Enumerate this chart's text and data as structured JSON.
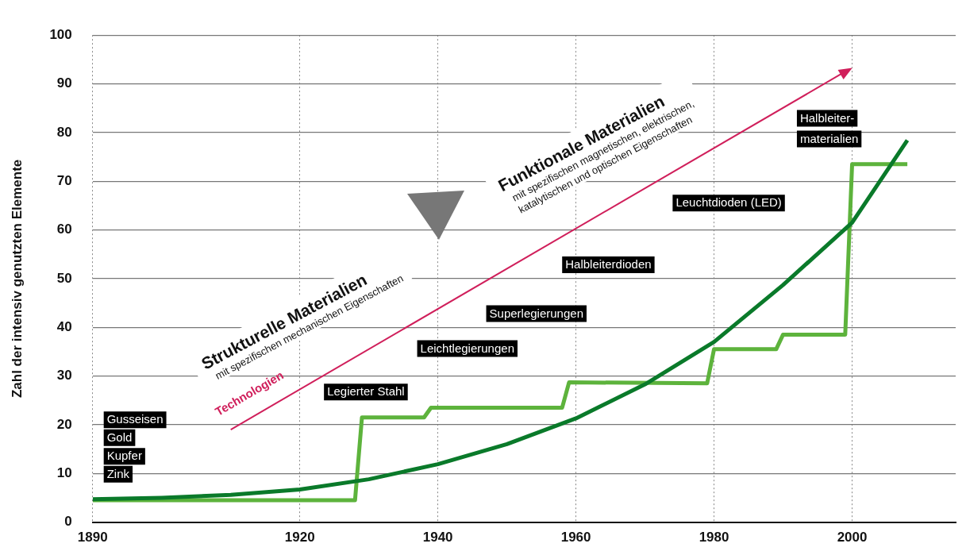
{
  "chart_data": {
    "type": "line",
    "ylabel": "Zahl der intensiv genutzten Elemente",
    "xlim": [
      1890,
      2015
    ],
    "xticks": [
      1890,
      1920,
      1940,
      1960,
      1980,
      2000
    ],
    "ylim": [
      0,
      100
    ],
    "yticks": [
      0,
      10,
      20,
      30,
      40,
      50,
      60,
      70,
      80,
      90,
      100
    ],
    "grid": true,
    "series": [
      {
        "type": "line",
        "color": "#0a7a2a",
        "x": [
          1890,
          1900,
          1910,
          1920,
          1930,
          1940,
          1950,
          1960,
          1970,
          1980,
          1990,
          2000,
          2008
        ],
        "values": [
          4.7,
          5,
          5.6,
          6.7,
          8.8,
          11.9,
          16,
          21.3,
          28.3,
          37,
          48.7,
          61.5,
          78.4
        ]
      },
      {
        "type": "line",
        "color": "#5db33c",
        "x": [
          1890,
          1928,
          1929,
          1938,
          1939,
          1958,
          1959,
          1979,
          1980,
          1989,
          1990,
          1999,
          2000,
          2008
        ],
        "values": [
          4.5,
          4.5,
          21.5,
          21.5,
          23.5,
          23.5,
          28.7,
          28.5,
          35.5,
          35.5,
          38.5,
          38.5,
          73.5,
          73.5
        ]
      },
      {
        "type": "line",
        "name": "Technologien",
        "color": "#d01f5b",
        "x": [
          1910,
          1999
        ],
        "values": [
          19,
          92.5
        ]
      }
    ],
    "annotations": [
      "Strukturelle Materialien",
      "mit spezifischen mechanischen Eigenschaften",
      "Funktionale Materialien",
      "mit spezifischen magnetischen, elektrischen,\nkatalytischen und optischen Eigenschaften",
      "Gusseisen",
      "Gold",
      "Kupfer",
      "Zink",
      "Legierter Stahl",
      "Leichtlegierungen",
      "Superlegierungen",
      "Halbleiterdioden",
      "Leuchtdioden (LED)",
      "Halbleiter-\nmaterialien"
    ]
  }
}
